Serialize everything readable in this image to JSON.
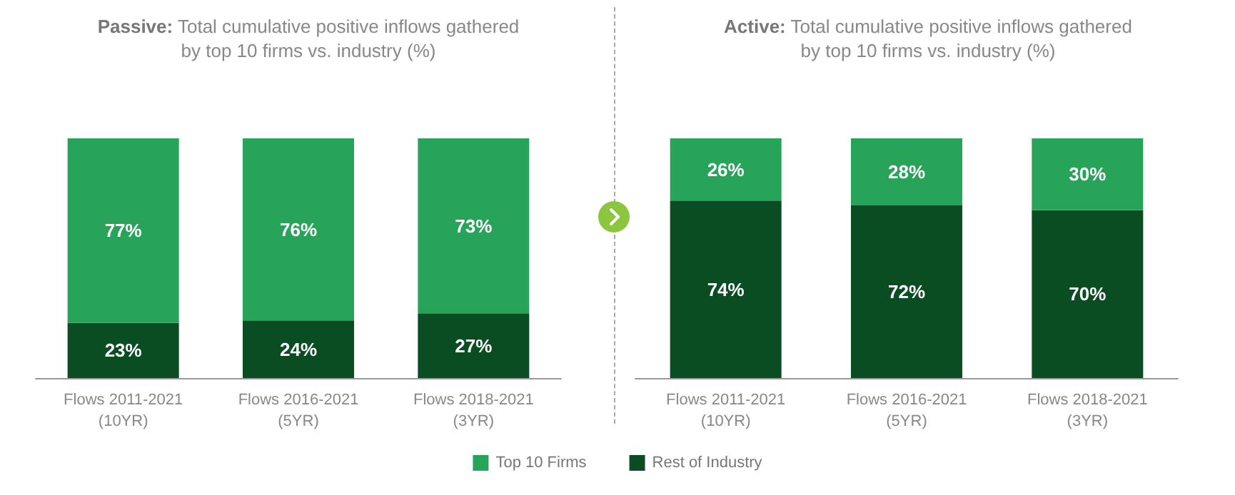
{
  "chart_data": [
    {
      "type": "bar",
      "title": "Passive: Total cumulative positive inflows gathered by top 10 firms vs. industry (%)",
      "categories": [
        "Flows 2011-2021\n(10YR)",
        "Flows 2016-2021\n(5YR)",
        "Flows 2018-2021\n(3YR)"
      ],
      "stacked": true,
      "tick_labels": "x",
      "legend": "bottom",
      "series": [
        {
          "name": "Rest of Industry",
          "color": "#0b4d22",
          "values": [
            23,
            24,
            27
          ],
          "value_labels": [
            "23%",
            "24%",
            "27%"
          ]
        },
        {
          "name": "Top 10 Firms",
          "color": "#28a35a",
          "values": [
            77,
            76,
            73
          ],
          "value_labels": [
            "77%",
            "76%",
            "73%"
          ]
        }
      ]
    },
    {
      "type": "bar",
      "title": "Active: Total cumulative positive inflows gathered by top 10 firms vs. industry (%)",
      "categories": [
        "Flows 2011-2021\n(10YR)",
        "Flows 2016-2021\n(5YR)",
        "Flows 2018-2021\n(3YR)"
      ],
      "stacked": true,
      "tick_labels": "x",
      "series": [
        {
          "color": "#0b4d22",
          "values": [
            74,
            72,
            70
          ],
          "value_labels": [
            "74%",
            "72%",
            "70%"
          ]
        },
        {
          "color": "#28a35a",
          "values": [
            26,
            28,
            30
          ],
          "value_labels": [
            "26%",
            "28%",
            "30%"
          ]
        }
      ]
    }
  ]
}
